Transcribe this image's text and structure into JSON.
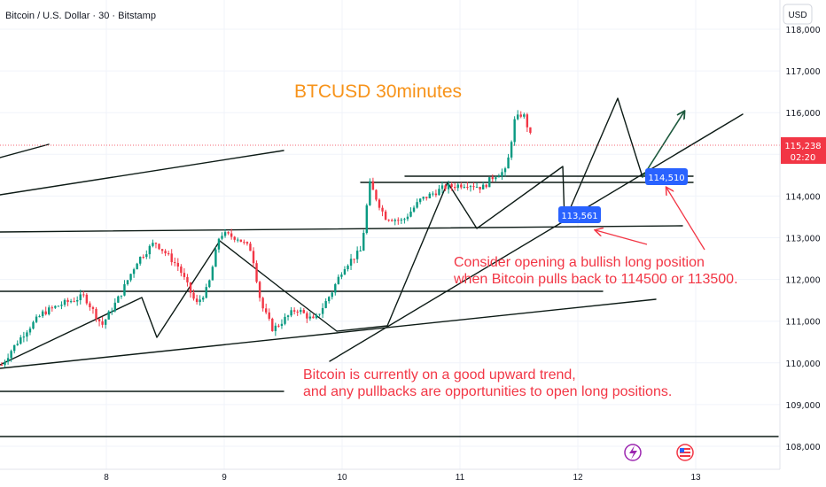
{
  "header": {
    "symbol_title": "Bitcoin / U.S. Dollar · 30 · Bitstamp",
    "currency_button": "USD"
  },
  "price_tag": {
    "price": "115,238",
    "countdown": "02:20"
  },
  "level_labels": [
    "114,510",
    "113,561"
  ],
  "colors": {
    "candle_up": "#089981",
    "candle_down": "#f23645",
    "title": "#f7931a",
    "annotation": "#f23645",
    "label_blue": "#2962ff",
    "drawing": "#0d1b16",
    "arrow": "#1e5a3e"
  },
  "chart_data": {
    "type": "candlestick",
    "title": "BTCUSD 30minutes",
    "xlabel": "",
    "ylabel": "",
    "ylim": [
      107850,
      118250
    ],
    "y_ticks": [
      108000,
      109000,
      110000,
      111000,
      112000,
      113000,
      114000,
      115000,
      116000,
      117000,
      118000
    ],
    "y_tick_labels": [
      "108,000",
      "109,000",
      "110,000",
      "111,000",
      "112,000",
      "113,000",
      "114,000",
      "115,000",
      "116,000",
      "117,000",
      "118,000"
    ],
    "x_ticks": [
      "8",
      "9",
      "10",
      "11",
      "12",
      "13"
    ],
    "last_price": 115238,
    "anchors": [
      [
        0,
        109950
      ],
      [
        0.08,
        110300
      ],
      [
        0.2,
        110750
      ],
      [
        0.35,
        111200
      ],
      [
        0.5,
        111400
      ],
      [
        0.7,
        111600
      ],
      [
        0.85,
        110900
      ],
      [
        1.0,
        111600
      ],
      [
        1.15,
        112450
      ],
      [
        1.3,
        112900
      ],
      [
        1.5,
        112300
      ],
      [
        1.65,
        111400
      ],
      [
        1.75,
        111800
      ],
      [
        1.85,
        113100
      ],
      [
        2.0,
        113000
      ],
      [
        2.12,
        112700
      ],
      [
        2.2,
        111400
      ],
      [
        2.3,
        110800
      ],
      [
        2.5,
        111300
      ],
      [
        2.65,
        111000
      ],
      [
        2.8,
        111700
      ],
      [
        2.9,
        112300
      ],
      [
        3.05,
        112700
      ],
      [
        3.12,
        114300
      ],
      [
        3.25,
        113500
      ],
      [
        3.4,
        113400
      ],
      [
        3.55,
        113900
      ],
      [
        3.75,
        114200
      ],
      [
        3.95,
        114300
      ],
      [
        4.08,
        114200
      ],
      [
        4.18,
        114500
      ],
      [
        4.28,
        114600
      ],
      [
        4.35,
        115800
      ],
      [
        4.42,
        116000
      ],
      [
        4.48,
        115500
      ],
      [
        4.5,
        115238
      ]
    ],
    "drawings": {
      "support_levels": [
        114510,
        113561
      ],
      "pullback_targets": [
        114500,
        113500
      ]
    },
    "annotations": [
      {
        "lines": [
          "Consider opening a bullish long position",
          "when Bitcoin pulls back to 114500 or 113500."
        ]
      },
      {
        "lines": [
          "Bitcoin is currently on a good upward trend,",
          "and any pullbacks are opportunities to open long positions."
        ]
      }
    ]
  }
}
